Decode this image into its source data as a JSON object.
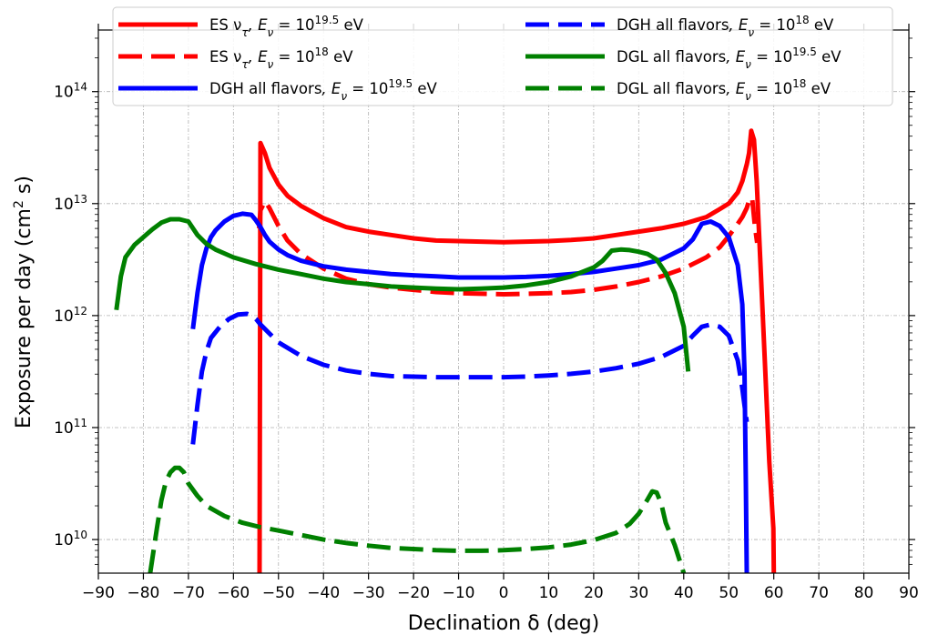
{
  "chart_data": {
    "type": "line",
    "xlabel": "Declination δ (deg)",
    "ylabel": "Exposure per day (cm² s)",
    "xlim": [
      -90,
      90
    ],
    "ylim_log10": [
      9.7,
      14.55
    ],
    "yscale": "log",
    "grid": true,
    "legend_position": "top",
    "x_ticks": [
      -90,
      -80,
      -70,
      -60,
      -50,
      -40,
      -30,
      -20,
      -10,
      0,
      10,
      20,
      30,
      40,
      50,
      60,
      70,
      80,
      90
    ],
    "y_ticks": [
      {
        "exp": 10,
        "label": "10",
        "sup": "10"
      },
      {
        "exp": 11,
        "label": "10",
        "sup": "11"
      },
      {
        "exp": 12,
        "label": "10",
        "sup": "12"
      },
      {
        "exp": 13,
        "label": "10",
        "sup": "13"
      },
      {
        "exp": 14,
        "label": "10",
        "sup": "14"
      }
    ],
    "legend": [
      {
        "pre": "ES ν",
        "sub": "τ",
        "mid": ", E",
        "sub2": "ν",
        "eq": " = 10",
        "sup": "19.5",
        "post": " eV",
        "color": "#ff0000",
        "dash": false
      },
      {
        "pre": "ES ν",
        "sub": "τ",
        "mid": ", E",
        "sub2": "ν",
        "eq": " = 10",
        "sup": "18",
        "post": " eV",
        "color": "#ff0000",
        "dash": true
      },
      {
        "pre": "DGH all flavors",
        "sub": "",
        "mid": ", E",
        "sub2": "ν",
        "eq": " = 10",
        "sup": "19.5",
        "post": " eV",
        "color": "#0000ff",
        "dash": false
      },
      {
        "pre": "DGH all flavors",
        "sub": "",
        "mid": ", E",
        "sub2": "ν",
        "eq": " = 10",
        "sup": "18",
        "post": " eV",
        "color": "#0000ff",
        "dash": true
      },
      {
        "pre": "DGL all flavors",
        "sub": "",
        "mid": ", E",
        "sub2": "ν",
        "eq": " = 10",
        "sup": "19.5",
        "post": " eV",
        "color": "#008000",
        "dash": false
      },
      {
        "pre": "DGL all flavors",
        "sub": "",
        "mid": ", E",
        "sub2": "ν",
        "eq": " = 10",
        "sup": "18",
        "post": " eV",
        "color": "#008000",
        "dash": true
      }
    ],
    "series": [
      {
        "name": "ES ν_τ, E_ν = 10^19.5 eV",
        "color": "#ff0000",
        "dash": false,
        "x": [
          -54.2,
          -54,
          -53,
          -52,
          -50,
          -48,
          -45,
          -40,
          -35,
          -30,
          -25,
          -20,
          -15,
          -10,
          -5,
          0,
          5,
          10,
          15,
          20,
          25,
          30,
          35,
          40,
          45,
          48,
          50,
          52,
          53,
          54,
          54.5,
          55,
          55.6,
          56.2,
          57,
          58,
          59,
          59.6,
          59.9,
          60
        ],
        "log10y": [
          9.7,
          13.54,
          13.45,
          13.32,
          13.17,
          13.07,
          12.98,
          12.87,
          12.79,
          12.75,
          12.72,
          12.69,
          12.67,
          12.665,
          12.66,
          12.655,
          12.66,
          12.665,
          12.675,
          12.69,
          12.72,
          12.75,
          12.78,
          12.82,
          12.88,
          12.95,
          13.0,
          13.1,
          13.2,
          13.35,
          13.45,
          13.65,
          13.57,
          13.2,
          12.5,
          11.6,
          10.7,
          10.3,
          10.1,
          9.7
        ]
      },
      {
        "name": "ES ν_τ, E_ν = 10^18 eV",
        "color": "#ff0000",
        "dash": true,
        "x": [
          -54.3,
          -54,
          -53,
          -52,
          -50,
          -48,
          -45,
          -40,
          -35,
          -30,
          -25,
          -20,
          -15,
          -10,
          -5,
          0,
          5,
          10,
          15,
          20,
          25,
          30,
          35,
          40,
          45,
          48,
          50,
          52,
          53,
          54,
          54.6,
          55.2,
          55.8,
          56.3
        ],
        "log10y": [
          12.78,
          12.94,
          13.02,
          12.96,
          12.8,
          12.67,
          12.55,
          12.42,
          12.33,
          12.28,
          12.25,
          12.23,
          12.21,
          12.2,
          12.195,
          12.19,
          12.195,
          12.2,
          12.21,
          12.23,
          12.26,
          12.3,
          12.35,
          12.42,
          12.52,
          12.61,
          12.71,
          12.82,
          12.88,
          12.96,
          13.04,
          13.05,
          12.8,
          12.65
        ]
      },
      {
        "name": "DGH all flavors, E_ν = 10^19.5 eV",
        "color": "#0000ff",
        "dash": false,
        "x": [
          -69,
          -68,
          -67,
          -66,
          -65,
          -64,
          -62,
          -60,
          -58,
          -56,
          -55,
          -54,
          -53,
          -52,
          -50,
          -48,
          -45,
          -40,
          -35,
          -30,
          -25,
          -20,
          -15,
          -10,
          -5,
          0,
          5,
          10,
          15,
          20,
          25,
          30,
          35,
          40,
          42,
          44,
          46,
          48,
          50,
          52,
          53,
          53.5,
          53.8,
          54
        ],
        "log10y": [
          11.88,
          12.2,
          12.45,
          12.6,
          12.7,
          12.76,
          12.84,
          12.89,
          12.91,
          12.9,
          12.85,
          12.79,
          12.72,
          12.66,
          12.59,
          12.54,
          12.49,
          12.44,
          12.41,
          12.39,
          12.37,
          12.36,
          12.35,
          12.34,
          12.34,
          12.34,
          12.345,
          12.355,
          12.37,
          12.39,
          12.42,
          12.45,
          12.5,
          12.6,
          12.68,
          12.82,
          12.84,
          12.8,
          12.7,
          12.45,
          12.1,
          11.5,
          10.5,
          9.7
        ]
      },
      {
        "name": "DGH all flavors, E_ν = 10^18 eV",
        "color": "#0000ff",
        "dash": true,
        "x": [
          -69,
          -68,
          -67,
          -66,
          -65,
          -63,
          -61,
          -59,
          -57,
          -56,
          -55,
          -54,
          -52,
          -50,
          -45,
          -40,
          -35,
          -30,
          -25,
          -20,
          -15,
          -10,
          -5,
          0,
          5,
          10,
          15,
          20,
          25,
          30,
          35,
          40,
          42,
          44,
          46,
          48,
          50,
          52,
          53,
          53.5,
          54
        ],
        "log10y": [
          10.85,
          11.2,
          11.5,
          11.68,
          11.8,
          11.9,
          11.97,
          12.01,
          12.015,
          12.0,
          11.97,
          11.92,
          11.84,
          11.76,
          11.64,
          11.56,
          11.51,
          11.48,
          11.46,
          11.455,
          11.45,
          11.45,
          11.45,
          11.45,
          11.455,
          11.465,
          11.48,
          11.5,
          11.53,
          11.57,
          11.63,
          11.73,
          11.82,
          11.9,
          11.92,
          11.9,
          11.82,
          11.6,
          11.35,
          11.2,
          11.05
        ]
      },
      {
        "name": "DGL all flavors, E_ν = 10^19.5 eV",
        "color": "#008000",
        "dash": false,
        "x": [
          -86,
          -85,
          -84,
          -82,
          -80,
          -78,
          -76,
          -74,
          -72,
          -70,
          -68,
          -66,
          -64,
          -60,
          -55,
          -50,
          -45,
          -40,
          -35,
          -30,
          -25,
          -20,
          -15,
          -10,
          -5,
          0,
          5,
          10,
          15,
          20,
          22,
          24,
          26,
          28,
          30,
          32,
          34,
          36,
          38,
          40,
          41
        ],
        "log10y": [
          12.05,
          12.35,
          12.52,
          12.63,
          12.7,
          12.77,
          12.83,
          12.86,
          12.86,
          12.84,
          12.72,
          12.64,
          12.59,
          12.52,
          12.46,
          12.41,
          12.37,
          12.33,
          12.3,
          12.28,
          12.26,
          12.25,
          12.24,
          12.235,
          12.24,
          12.25,
          12.27,
          12.3,
          12.35,
          12.43,
          12.49,
          12.58,
          12.59,
          12.585,
          12.57,
          12.55,
          12.5,
          12.38,
          12.2,
          11.9,
          11.5
        ]
      },
      {
        "name": "DGL all flavors, E_ν = 10^18 eV",
        "color": "#008000",
        "dash": true,
        "x": [
          -78.5,
          -77,
          -76,
          -75,
          -74,
          -73,
          -72,
          -71,
          -70,
          -68,
          -66,
          -62,
          -58,
          -54,
          -50,
          -45,
          -40,
          -35,
          -30,
          -25,
          -20,
          -15,
          -10,
          -5,
          0,
          5,
          10,
          15,
          20,
          25,
          28,
          30,
          32,
          33,
          34,
          35,
          36,
          38,
          40
        ],
        "log10y": [
          9.7,
          10.1,
          10.35,
          10.52,
          10.6,
          10.64,
          10.64,
          10.6,
          10.5,
          10.39,
          10.3,
          10.21,
          10.15,
          10.11,
          10.08,
          10.04,
          10.0,
          9.97,
          9.945,
          9.925,
          9.915,
          9.905,
          9.9,
          9.9,
          9.905,
          9.915,
          9.93,
          9.955,
          9.995,
          10.06,
          10.14,
          10.23,
          10.36,
          10.43,
          10.42,
          10.32,
          10.15,
          9.95,
          9.7
        ]
      }
    ]
  }
}
